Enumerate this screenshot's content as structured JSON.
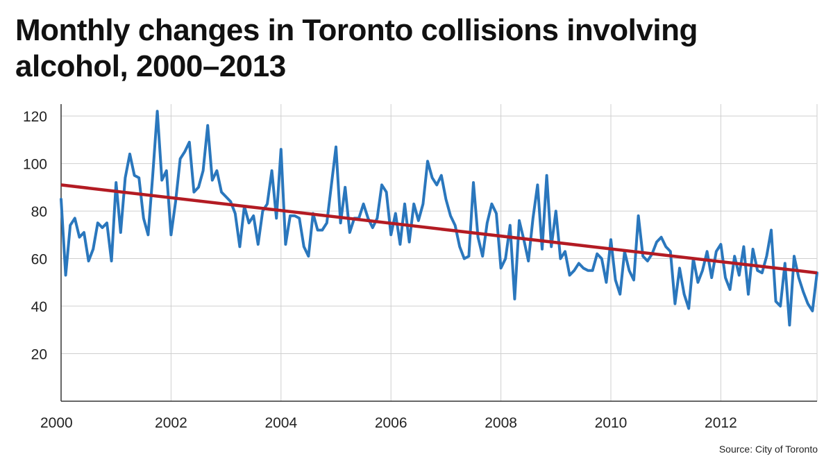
{
  "chart_data": {
    "type": "line",
    "title": "Monthly changes in Toronto collisions involving alcohol, 2000–2013",
    "source": "Source: City of Toronto",
    "xlabel": "",
    "ylabel": "",
    "xlim": [
      2000,
      2013.75
    ],
    "ylim": [
      0,
      125
    ],
    "x_ticks": [
      {
        "value": 2000,
        "label": "2000"
      },
      {
        "value": 2002,
        "label": "2002"
      },
      {
        "value": 2004,
        "label": "2004"
      },
      {
        "value": 2006,
        "label": "2006"
      },
      {
        "value": 2008,
        "label": "2008"
      },
      {
        "value": 2010,
        "label": "2010"
      },
      {
        "value": 2012,
        "label": "2012"
      }
    ],
    "y_ticks": [
      {
        "value": 20,
        "label": "20"
      },
      {
        "value": 40,
        "label": "40"
      },
      {
        "value": 60,
        "label": "60"
      },
      {
        "value": 80,
        "label": "80"
      },
      {
        "value": 100,
        "label": "100"
      },
      {
        "value": 120,
        "label": "120"
      }
    ],
    "grid": true,
    "colors": {
      "series": "#2a77bd",
      "trend": "#b31b23",
      "grid": "#cfcfcf",
      "axis": "#333333"
    },
    "series": [
      {
        "kind": "monthly",
        "start_year": 2000,
        "values": [
          85,
          53,
          74,
          77,
          69,
          71,
          59,
          64,
          75,
          73,
          75,
          59,
          92,
          71,
          94,
          104,
          95,
          94,
          77,
          70,
          95,
          122,
          93,
          97,
          70,
          84,
          102,
          105,
          109,
          88,
          90,
          97,
          116,
          93,
          97,
          88,
          86,
          84,
          79,
          65,
          82,
          75,
          78,
          66,
          80,
          83,
          97,
          77,
          106,
          66,
          78,
          78,
          77,
          65,
          61,
          79,
          72,
          72,
          75,
          91,
          107,
          75,
          90,
          71,
          77,
          77,
          83,
          77,
          73,
          77,
          91,
          88,
          70,
          79,
          66,
          83,
          67,
          83,
          76,
          83,
          101,
          94,
          91,
          95,
          85,
          78,
          74,
          65,
          60,
          61,
          92,
          69,
          61,
          75,
          83,
          79,
          56,
          60,
          74,
          43,
          76,
          68,
          59,
          77,
          91,
          64,
          95,
          65,
          80,
          60,
          63,
          53,
          55,
          58,
          56,
          55,
          55,
          62,
          60,
          50,
          68,
          51,
          45,
          63,
          55,
          51,
          78,
          61,
          59,
          62,
          67,
          69,
          65,
          63,
          41,
          56,
          45,
          39,
          60,
          50,
          55,
          63,
          52,
          63,
          66,
          52,
          47,
          61,
          53,
          65,
          45,
          64,
          55,
          54,
          61,
          72,
          42,
          40,
          58,
          32,
          61,
          52,
          46,
          41,
          38,
          54
        ]
      },
      {
        "kind": "trend",
        "x": [
          2000,
          2013.75
        ],
        "values": [
          91,
          54
        ]
      }
    ]
  }
}
